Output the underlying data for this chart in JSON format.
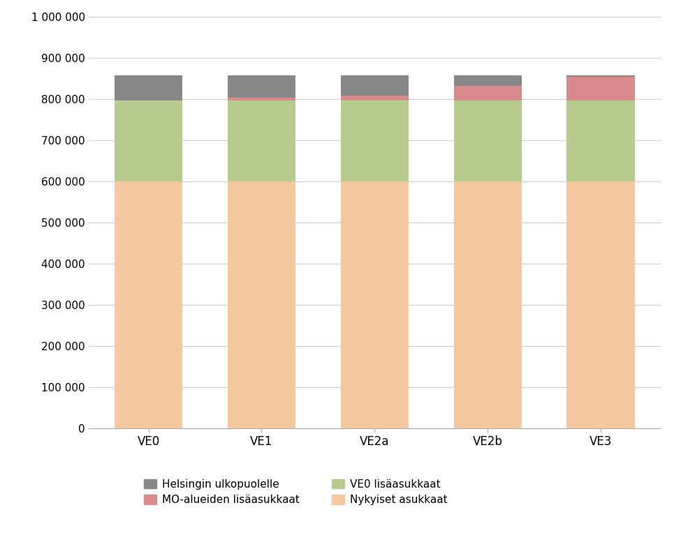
{
  "categories": [
    "VE0",
    "VE1",
    "VE2a",
    "VE2b",
    "VE3"
  ],
  "nykyiset_asukkaat": [
    600000,
    600000,
    600000,
    600000,
    600000
  ],
  "ve0_lisaasukkaat": [
    196000,
    196000,
    196000,
    196000,
    196000
  ],
  "mo_lisaasukkaat": [
    0,
    7000,
    12000,
    35000,
    57000
  ],
  "helsingin_ulkopuolelle": [
    61000,
    54000,
    49000,
    26000,
    4000
  ],
  "colors": {
    "nykyiset_asukkaat": "#f5c9a0",
    "ve0_lisaasukkaat": "#b5cc8e",
    "mo_lisaasukkaat": "#d98b8b",
    "helsingin_ulkopuolelle": "#888888"
  },
  "legend_labels": {
    "helsingin_ulkopuolelle": "Helsingin ulkopuolelle",
    "mo_lisaasukkaat": "MO-alueiden lisäasukkaat",
    "ve0_lisaasukkaat": "VE0 lisäasukkaat",
    "nykyiset_asukkaat": "Nykyiset asukkaat"
  },
  "ylim": [
    0,
    1000000
  ],
  "yticks": [
    0,
    100000,
    200000,
    300000,
    400000,
    500000,
    600000,
    700000,
    800000,
    900000,
    1000000
  ],
  "ytick_labels": [
    "0",
    "100 000",
    "200 000",
    "300 000",
    "400 000",
    "500 000",
    "600 000",
    "700 000",
    "800 000",
    "900 000",
    "1 000 000"
  ],
  "background_color": "#ffffff",
  "plot_bg_color": "#ffffff",
  "grid_color": "#cccccc",
  "bar_width": 0.6
}
